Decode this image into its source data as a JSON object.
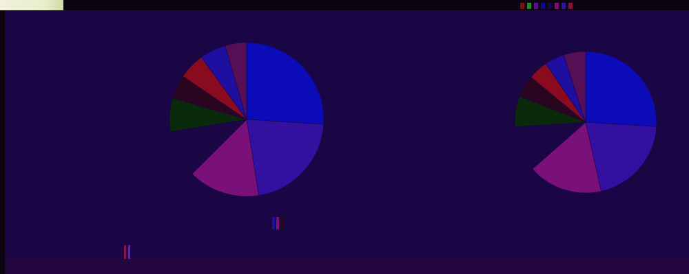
{
  "chart_data": [
    {
      "type": "pie",
      "start_angle_deg": 90,
      "direction": "clockwise",
      "slices": [
        {
          "value": 26.0,
          "color": "#0b0bb8"
        },
        {
          "value": 21.5,
          "color": "#3410a0"
        },
        {
          "value": 15.0,
          "color": "#7a107a"
        },
        {
          "value": 10.0,
          "color": "#1a0545"
        },
        {
          "value": 7.0,
          "color": "#0b2a0b"
        },
        {
          "value": 5.0,
          "color": "#2a0520"
        },
        {
          "value": 5.5,
          "color": "#8a0a20"
        },
        {
          "value": 5.5,
          "color": "#1f0fa0"
        },
        {
          "value": 4.5,
          "color": "#560f55"
        }
      ]
    },
    {
      "type": "pie",
      "start_angle_deg": 90,
      "direction": "clockwise",
      "slices": [
        {
          "value": 26.0,
          "color": "#0b0bb8"
        },
        {
          "value": 20.5,
          "color": "#3410a0"
        },
        {
          "value": 17.0,
          "color": "#7a107a"
        },
        {
          "value": 10.5,
          "color": "#1a0545"
        },
        {
          "value": 7.0,
          "color": "#0b2a0b"
        },
        {
          "value": 5.0,
          "color": "#2a0520"
        },
        {
          "value": 4.5,
          "color": "#8a0a20"
        },
        {
          "value": 4.5,
          "color": "#1f0fa0"
        },
        {
          "value": 5.0,
          "color": "#560f55"
        }
      ]
    }
  ],
  "colors": {
    "background": "#1a0545",
    "footer": "#24063e",
    "topbar": "#0c0410"
  }
}
